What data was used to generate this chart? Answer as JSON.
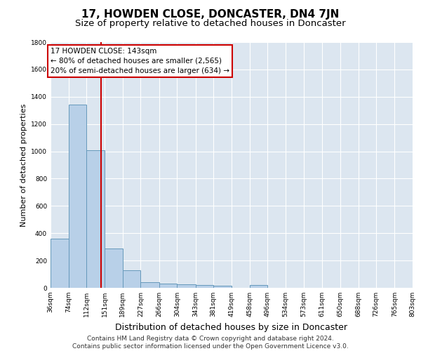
{
  "title": "17, HOWDEN CLOSE, DONCASTER, DN4 7JN",
  "subtitle": "Size of property relative to detached houses in Doncaster",
  "xlabel": "Distribution of detached houses by size in Doncaster",
  "ylabel": "Number of detached properties",
  "bin_edges": [
    36,
    74,
    112,
    151,
    189,
    227,
    266,
    304,
    343,
    381,
    419,
    458,
    496,
    534,
    573,
    611,
    650,
    688,
    726,
    765,
    803
  ],
  "bar_heights": [
    360,
    1340,
    1010,
    290,
    130,
    40,
    30,
    25,
    20,
    15,
    0,
    20,
    0,
    0,
    0,
    0,
    0,
    0,
    0,
    0
  ],
  "bar_color": "#b8d0e8",
  "bar_edge_color": "#6699bb",
  "red_line_x": 143,
  "red_line_color": "#cc0000",
  "annotation_title": "17 HOWDEN CLOSE: 143sqm",
  "annotation_line1": "← 80% of detached houses are smaller (2,565)",
  "annotation_line2": "20% of semi-detached houses are larger (634) →",
  "annotation_box_color": "#ffffff",
  "annotation_box_edge": "#cc0000",
  "ylim": [
    0,
    1800
  ],
  "yticks": [
    0,
    200,
    400,
    600,
    800,
    1000,
    1200,
    1400,
    1600,
    1800
  ],
  "background_color": "#dce6f0",
  "footer_line1": "Contains HM Land Registry data © Crown copyright and database right 2024.",
  "footer_line2": "Contains public sector information licensed under the Open Government Licence v3.0.",
  "title_fontsize": 11,
  "subtitle_fontsize": 9.5,
  "xlabel_fontsize": 9,
  "ylabel_fontsize": 8,
  "tick_label_fontsize": 6.5,
  "footer_fontsize": 6.5,
  "annotation_fontsize": 7.5
}
